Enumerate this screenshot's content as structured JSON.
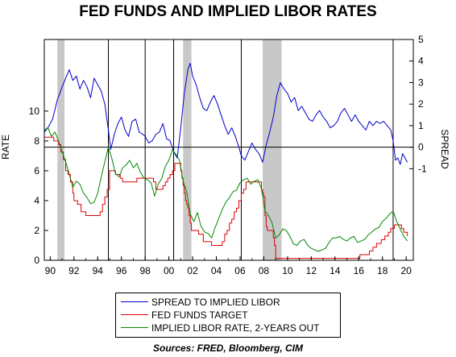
{
  "chart_data": {
    "type": "line",
    "title": "FED FUNDS AND IMPLIED LIBOR RATES",
    "ylabel_left": "RATE",
    "ylabel_right": "SPREAD",
    "xlim": [
      1989.5,
      2020.6
    ],
    "ylim_left": [
      0,
      14.8
    ],
    "ylim_right": [
      -5.25,
      5
    ],
    "x_ticks": [
      "90",
      "92",
      "94",
      "96",
      "98",
      "00",
      "02",
      "04",
      "06",
      "08",
      "10",
      "12",
      "14",
      "16",
      "18",
      "20"
    ],
    "y_ticks_left": [
      0,
      2,
      4,
      6,
      8,
      10
    ],
    "y_ticks_right": [
      -1,
      0,
      1,
      2,
      3,
      4,
      5
    ],
    "recessions": [
      [
        1990.6,
        1991.2
      ],
      [
        2001.2,
        2001.9
      ],
      [
        2007.9,
        2009.5
      ]
    ],
    "vertical_markers": [
      1994.9,
      1998.0,
      2000.4,
      2006.1,
      2018.9
    ],
    "zero_spread_line": 0,
    "series": [
      {
        "name": "SPREAD TO IMPLIED LIBOR",
        "axis": "right",
        "color": "#0000cc",
        "x": [
          1989.5,
          1989.8,
          1990.2,
          1990.6,
          1991.0,
          1991.3,
          1991.6,
          1991.9,
          1992.2,
          1992.5,
          1992.8,
          1993.1,
          1993.4,
          1993.7,
          1994.0,
          1994.3,
          1994.6,
          1994.9,
          1995.1,
          1995.4,
          1995.7,
          1996.0,
          1996.3,
          1996.6,
          1996.9,
          1997.2,
          1997.5,
          1997.8,
          1998.0,
          1998.3,
          1998.6,
          1998.9,
          1999.2,
          1999.5,
          1999.8,
          2000.1,
          2000.4,
          2000.7,
          2001.0,
          2001.3,
          2001.6,
          2001.8,
          2002.0,
          2002.3,
          2002.6,
          2002.9,
          2003.2,
          2003.5,
          2003.8,
          2004.1,
          2004.4,
          2004.7,
          2005.0,
          2005.3,
          2005.6,
          2005.9,
          2006.1,
          2006.4,
          2006.7,
          2007.0,
          2007.3,
          2007.6,
          2007.9,
          2008.2,
          2008.5,
          2008.8,
          2009.1,
          2009.4,
          2009.7,
          2010.0,
          2010.3,
          2010.6,
          2010.9,
          2011.2,
          2011.5,
          2011.8,
          2012.1,
          2012.4,
          2012.7,
          2013.0,
          2013.3,
          2013.6,
          2013.9,
          2014.2,
          2014.5,
          2014.8,
          2015.1,
          2015.4,
          2015.7,
          2016.0,
          2016.3,
          2016.6,
          2016.9,
          2017.2,
          2017.5,
          2017.8,
          2018.1,
          2018.4,
          2018.7,
          2018.9,
          2019.1,
          2019.3,
          2019.5,
          2019.7,
          2019.9,
          2020.1
        ],
        "values": [
          0.7,
          0.9,
          1.3,
          2.2,
          2.8,
          3.2,
          3.6,
          3.1,
          3.3,
          2.7,
          3.1,
          2.8,
          2.3,
          3.2,
          2.9,
          2.6,
          2.0,
          0.8,
          -0.1,
          0.6,
          1.1,
          1.4,
          0.8,
          0.5,
          1.2,
          1.3,
          0.7,
          0.6,
          0.5,
          0.2,
          0.3,
          0.6,
          0.7,
          1.1,
          0.4,
          0.3,
          -0.2,
          -0.5,
          0.9,
          2.5,
          3.6,
          3.9,
          3.3,
          2.9,
          2.3,
          1.8,
          1.7,
          2.1,
          2.4,
          2.0,
          1.5,
          1.0,
          0.6,
          0.9,
          0.5,
          0.0,
          -0.4,
          -0.6,
          -0.2,
          0.2,
          -0.1,
          -0.3,
          -0.7,
          0.1,
          0.7,
          1.4,
          2.4,
          3.0,
          2.7,
          2.5,
          2.1,
          2.3,
          1.7,
          1.9,
          1.6,
          1.3,
          1.2,
          1.5,
          1.7,
          1.4,
          1.2,
          0.9,
          1.0,
          1.2,
          1.6,
          1.8,
          1.5,
          1.2,
          1.5,
          1.2,
          1.0,
          0.8,
          1.2,
          1.0,
          1.2,
          1.1,
          1.2,
          1.0,
          0.8,
          0.3,
          -0.6,
          -0.5,
          -0.8,
          -0.3,
          -0.5,
          -0.7
        ]
      },
      {
        "name": "FED FUNDS TARGET",
        "axis": "left",
        "color": "#dd0000",
        "x": [
          1989.5,
          1990.0,
          1990.3,
          1990.7,
          1990.9,
          1991.1,
          1991.3,
          1991.5,
          1991.7,
          1991.9,
          1992.0,
          1992.3,
          1992.6,
          1993.0,
          1993.6,
          1994.0,
          1994.2,
          1994.4,
          1994.6,
          1994.8,
          1995.0,
          1995.5,
          1995.9,
          1996.1,
          1996.5,
          1997.0,
          1997.3,
          1997.8,
          1998.5,
          1998.7,
          1998.9,
          1999.2,
          1999.5,
          1999.7,
          1999.9,
          2000.1,
          2000.3,
          2000.5,
          2000.8,
          2001.0,
          2001.1,
          2001.2,
          2001.3,
          2001.4,
          2001.5,
          2001.6,
          2001.7,
          2001.8,
          2001.9,
          2002.5,
          2002.9,
          2003.4,
          2003.6,
          2004.0,
          2004.5,
          2004.7,
          2004.9,
          2005.1,
          2005.3,
          2005.5,
          2005.7,
          2005.9,
          2006.1,
          2006.3,
          2006.5,
          2007.0,
          2007.6,
          2007.8,
          2007.9,
          2008.0,
          2008.1,
          2008.2,
          2008.3,
          2008.5,
          2008.8,
          2008.9,
          2009.0,
          2012.0,
          2015.9,
          2016.1,
          2016.9,
          2017.2,
          2017.5,
          2017.9,
          2018.2,
          2018.5,
          2018.7,
          2019.0,
          2019.5,
          2019.6,
          2019.8,
          2020.1
        ],
        "values": [
          8.25,
          8.25,
          8.0,
          7.75,
          7.25,
          6.75,
          6.0,
          5.75,
          5.25,
          4.5,
          4.0,
          3.75,
          3.25,
          3.0,
          3.0,
          3.0,
          3.25,
          3.75,
          4.25,
          4.75,
          6.0,
          5.75,
          5.5,
          5.25,
          5.25,
          5.25,
          5.5,
          5.5,
          5.5,
          5.25,
          4.75,
          4.75,
          5.0,
          5.25,
          5.5,
          5.75,
          6.0,
          6.5,
          6.5,
          6.0,
          5.5,
          5.0,
          4.5,
          4.0,
          3.75,
          3.5,
          3.0,
          2.5,
          2.0,
          1.75,
          1.25,
          1.25,
          1.0,
          1.0,
          1.25,
          1.75,
          2.0,
          2.5,
          2.75,
          3.25,
          3.5,
          4.0,
          4.5,
          4.75,
          5.25,
          5.25,
          5.25,
          4.75,
          4.5,
          4.25,
          3.0,
          2.25,
          2.0,
          2.0,
          1.5,
          1.0,
          0.125,
          0.125,
          0.125,
          0.375,
          0.625,
          0.875,
          1.125,
          1.375,
          1.625,
          1.875,
          2.125,
          2.375,
          2.375,
          2.125,
          1.875,
          1.625
        ]
      },
      {
        "name": "IMPLIED LIBOR RATE, 2-YEARS OUT",
        "axis": "left",
        "color": "#008800",
        "x": [
          1989.5,
          1989.8,
          1990.1,
          1990.4,
          1990.7,
          1991.0,
          1991.3,
          1991.6,
          1991.9,
          1992.2,
          1992.5,
          1992.8,
          1993.1,
          1993.4,
          1993.7,
          1994.0,
          1994.3,
          1994.6,
          1994.9,
          1995.2,
          1995.5,
          1995.8,
          1996.1,
          1996.4,
          1996.7,
          1997.0,
          1997.3,
          1997.6,
          1997.9,
          1998.2,
          1998.5,
          1998.8,
          1999.1,
          1999.4,
          1999.7,
          2000.0,
          2000.3,
          2000.6,
          2000.9,
          2001.2,
          2001.5,
          2001.8,
          2002.1,
          2002.4,
          2002.7,
          2003.0,
          2003.3,
          2003.6,
          2003.9,
          2004.2,
          2004.5,
          2004.8,
          2005.1,
          2005.4,
          2005.7,
          2006.0,
          2006.3,
          2006.6,
          2006.9,
          2007.2,
          2007.5,
          2007.8,
          2008.1,
          2008.4,
          2008.7,
          2009.0,
          2009.3,
          2009.6,
          2009.9,
          2010.2,
          2010.5,
          2010.8,
          2011.1,
          2011.4,
          2011.7,
          2012.0,
          2012.3,
          2012.6,
          2012.9,
          2013.2,
          2013.5,
          2013.8,
          2014.1,
          2014.4,
          2014.7,
          2015.0,
          2015.3,
          2015.6,
          2015.9,
          2016.2,
          2016.5,
          2016.8,
          2017.1,
          2017.4,
          2017.7,
          2018.0,
          2018.3,
          2018.6,
          2018.9,
          2019.2,
          2019.5,
          2019.8,
          2020.1
        ],
        "values": [
          8.7,
          8.9,
          8.3,
          8.6,
          8.0,
          7.3,
          6.6,
          5.8,
          4.9,
          5.3,
          5.1,
          4.5,
          4.2,
          3.8,
          3.9,
          4.5,
          5.6,
          6.6,
          7.6,
          6.8,
          5.8,
          5.6,
          6.2,
          6.4,
          6.7,
          6.2,
          6.5,
          5.9,
          5.5,
          5.4,
          5.2,
          4.3,
          5.1,
          5.5,
          6.3,
          6.7,
          7.4,
          7.1,
          6.7,
          5.3,
          4.6,
          3.1,
          2.6,
          3.2,
          2.3,
          1.9,
          1.8,
          1.5,
          2.2,
          2.8,
          3.4,
          3.9,
          4.2,
          4.6,
          4.7,
          5.2,
          5.4,
          5.5,
          5.1,
          5.3,
          5.4,
          4.8,
          3.3,
          3.0,
          2.5,
          1.5,
          1.7,
          2.1,
          2.0,
          1.6,
          1.1,
          1.0,
          1.3,
          1.4,
          1.0,
          0.8,
          0.7,
          0.6,
          0.7,
          0.8,
          1.2,
          1.5,
          1.5,
          1.6,
          1.4,
          1.3,
          1.5,
          1.6,
          1.2,
          1.3,
          1.4,
          1.7,
          1.9,
          2.1,
          2.2,
          2.6,
          2.8,
          3.1,
          3.3,
          2.6,
          2.1,
          1.6,
          1.3
        ]
      }
    ],
    "legend": {
      "placement": "bottom-center",
      "entries": [
        "SPREAD TO IMPLIED LIBOR",
        "FED FUNDS TARGET",
        "IMPLIED LIBOR RATE, 2-YEARS OUT"
      ]
    },
    "source": "Sources:  FRED, Bloomberg, CIM"
  }
}
